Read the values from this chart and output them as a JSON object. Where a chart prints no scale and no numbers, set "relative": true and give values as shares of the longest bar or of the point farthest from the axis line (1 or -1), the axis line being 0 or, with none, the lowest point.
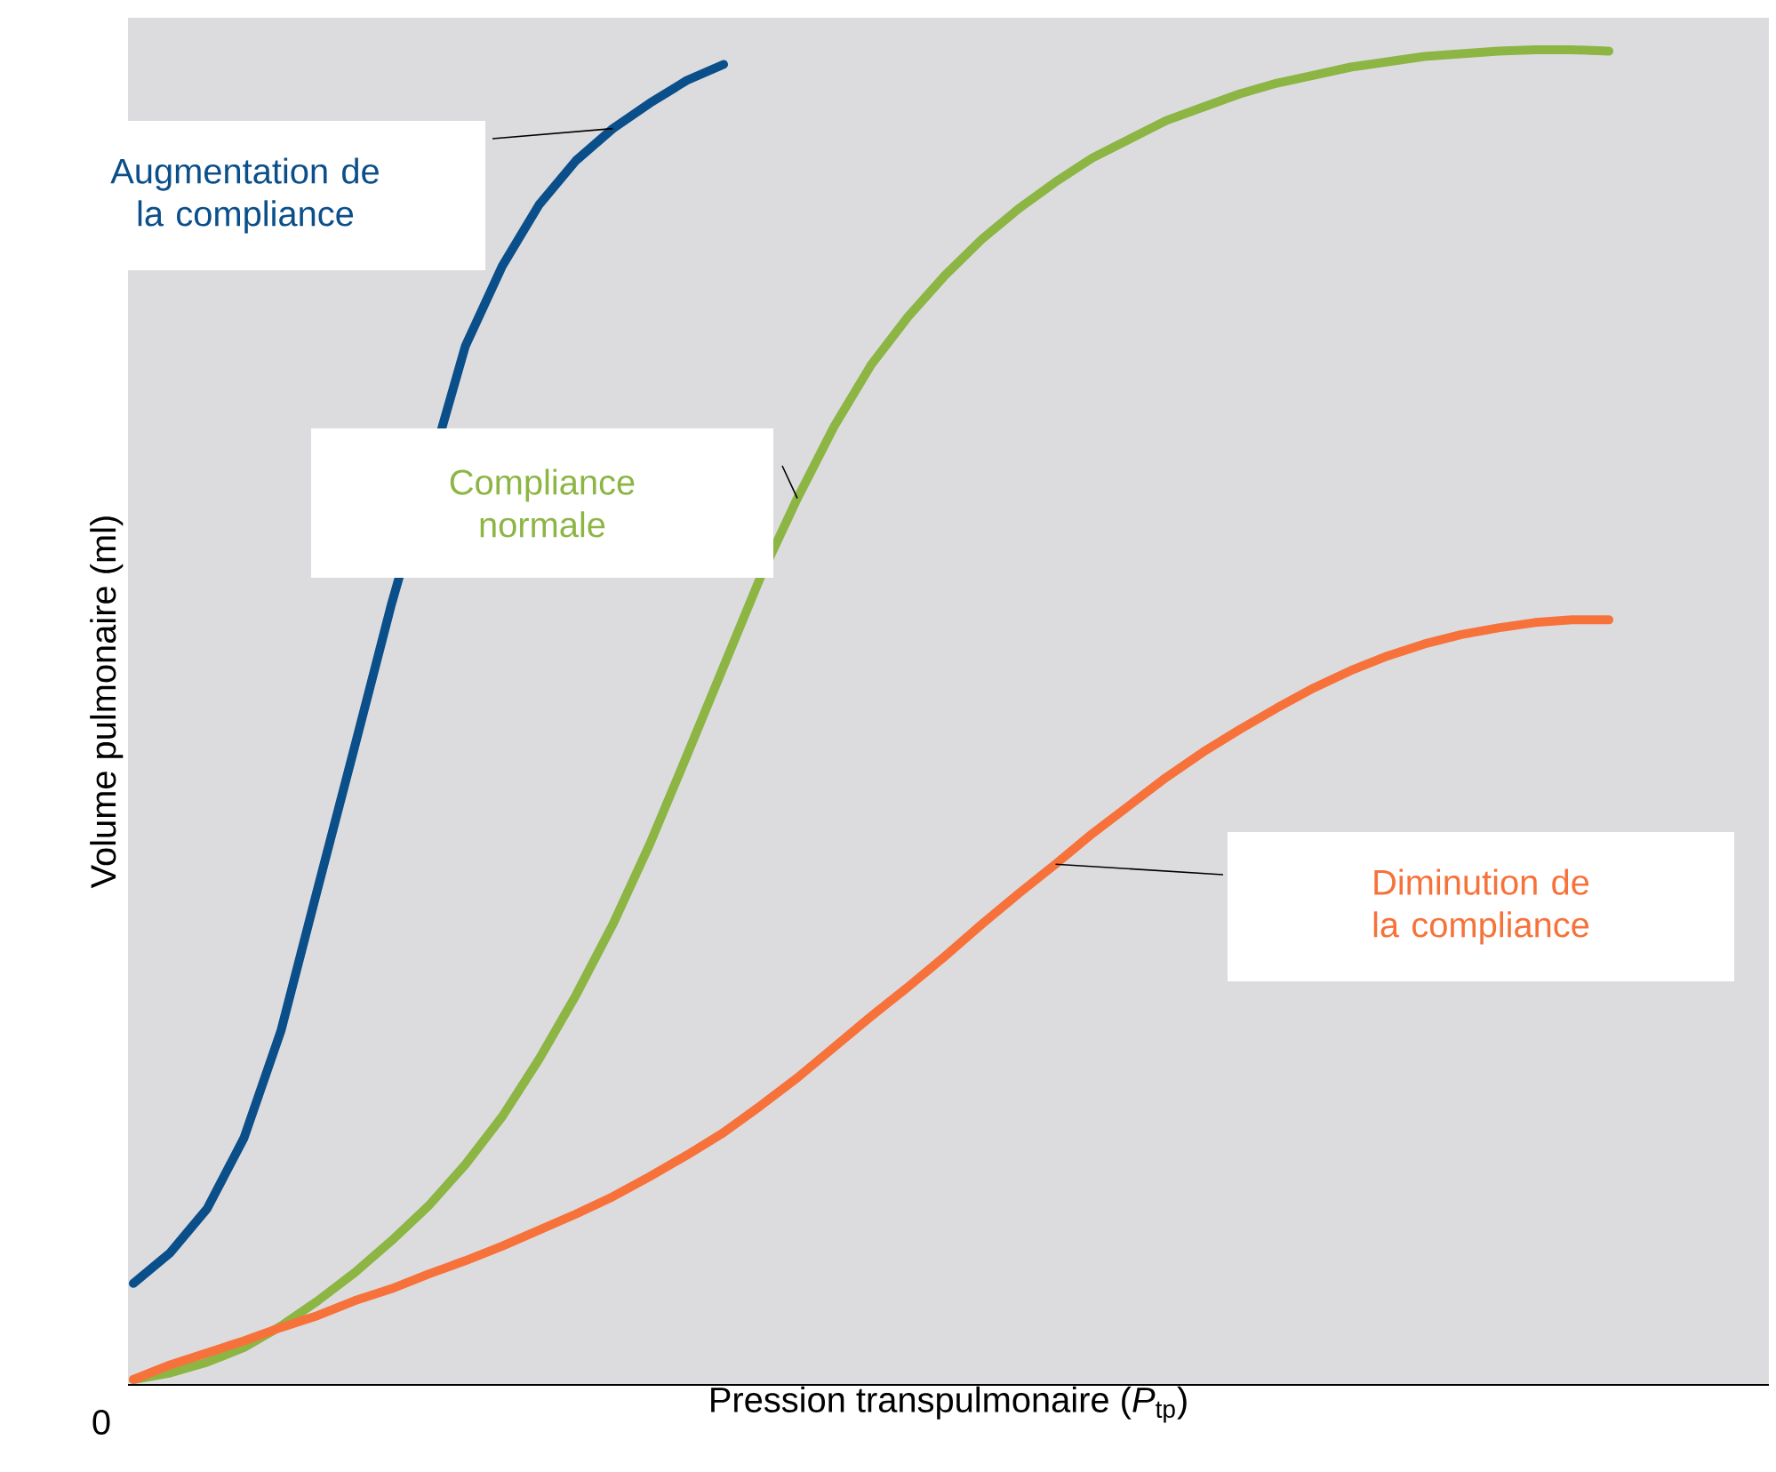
{
  "chart_data": {
    "type": "line",
    "relative": true,
    "xlabel": "Pression transpulmonaire (*P*$_{tp}$)",
    "ylabel": "Volume pulmonaire (ml)",
    "marker": "none",
    "line_style": "solid",
    "annotations": [
      "0"
    ],
    "categories": [
      null,
      null,
      null,
      null,
      null,
      null,
      null,
      null,
      null,
      null,
      null,
      null,
      null,
      null,
      null,
      null,
      null,
      null,
      null,
      null,
      null,
      null,
      null,
      null,
      null,
      null,
      null,
      null,
      null,
      null,
      null,
      null,
      null,
      null,
      null,
      null,
      null,
      null,
      null,
      null,
      null
    ],
    "series": [
      {
        "name": "Augmentation de la compliance",
        "color": "#0b4f8a",
        "values": [
          0.076,
          0.099,
          0.132,
          0.185,
          0.265,
          0.372,
          0.478,
          0.585,
          null,
          0.778,
          0.838,
          0.884,
          0.917,
          0.941,
          0.96,
          0.977,
          0.989,
          null,
          null,
          null,
          null,
          null,
          null,
          null,
          null,
          null,
          null,
          null,
          null,
          null,
          null,
          null,
          null,
          null,
          null,
          null,
          null,
          null,
          null,
          null,
          null
        ]
      },
      {
        "name": "Compliance normale",
        "color": "#8cb544",
        "values": [
          0.004,
          0.009,
          0.017,
          0.028,
          0.044,
          0.063,
          0.084,
          0.108,
          0.134,
          0.165,
          0.201,
          0.244,
          0.292,
          0.345,
          0.405,
          0.471,
          0.538,
          0.605,
          0.664,
          0.718,
          0.764,
          0.8,
          0.831,
          0.858,
          0.881,
          0.901,
          0.919,
          0.933,
          0.947,
          0.957,
          0.967,
          0.975,
          0.981,
          0.987,
          0.991,
          0.995,
          0.997,
          0.999,
          1.0,
          1.0,
          0.999
        ]
      },
      {
        "name": "Diminution de la compliance",
        "color": "#f7723a",
        "values": [
          0.004,
          0.015,
          0.024,
          0.033,
          0.043,
          0.052,
          0.063,
          0.072,
          0.083,
          0.093,
          0.104,
          0.116,
          0.128,
          0.141,
          0.156,
          0.172,
          0.189,
          0.209,
          0.23,
          0.253,
          0.276,
          0.298,
          0.321,
          0.345,
          0.368,
          0.39,
          0.413,
          0.434,
          0.455,
          0.474,
          0.491,
          0.507,
          0.522,
          0.535,
          0.546,
          0.555,
          0.562,
          0.567,
          0.571,
          0.573,
          0.573
        ]
      }
    ]
  }
}
